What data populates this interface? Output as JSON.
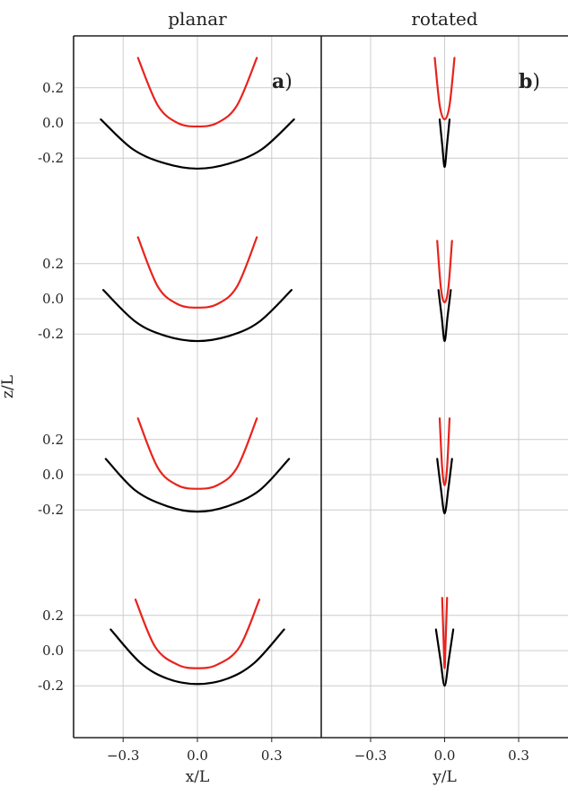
{
  "chart_data": {
    "type": "line",
    "ylabel": "z/L",
    "y_ticks": [
      "0.2",
      "0.0",
      "-0.2"
    ],
    "row_ytick_values": [
      0.2,
      0.0,
      -0.2
    ],
    "colors": {
      "red": "#e8231c",
      "black": "#000000"
    },
    "panels": [
      {
        "title": "planar",
        "tag": "a",
        "xlabel": "x/L",
        "x_ticks": [
          "−0.3",
          "0.0",
          "0.3"
        ],
        "x_tick_values": [
          -0.3,
          0.0,
          0.3
        ],
        "xlim": [
          -0.5,
          0.5
        ],
        "rows": [
          {
            "red": {
              "x": [
                -0.24,
                -0.16,
                -0.08,
                0.0,
                0.08,
                0.16,
                0.24
              ],
              "z": [
                0.37,
                0.1,
                0.0,
                -0.02,
                0.0,
                0.1,
                0.37
              ]
            },
            "black": {
              "x": [
                -0.39,
                -0.26,
                -0.13,
                0.0,
                0.13,
                0.26,
                0.39
              ],
              "z": [
                0.02,
                -0.15,
                -0.23,
                -0.26,
                -0.23,
                -0.15,
                0.02
              ]
            }
          },
          {
            "red": {
              "x": [
                -0.24,
                -0.16,
                -0.08,
                0.0,
                0.08,
                0.16,
                0.24
              ],
              "z": [
                0.35,
                0.07,
                -0.03,
                -0.05,
                -0.03,
                0.07,
                0.35
              ]
            },
            "black": {
              "x": [
                -0.38,
                -0.25,
                -0.13,
                0.0,
                0.13,
                0.25,
                0.38
              ],
              "z": [
                0.05,
                -0.13,
                -0.21,
                -0.24,
                -0.21,
                -0.13,
                0.05
              ]
            }
          },
          {
            "red": {
              "x": [
                -0.24,
                -0.16,
                -0.08,
                0.0,
                0.08,
                0.16,
                0.24
              ],
              "z": [
                0.32,
                0.04,
                -0.06,
                -0.08,
                -0.06,
                0.04,
                0.32
              ]
            },
            "black": {
              "x": [
                -0.37,
                -0.25,
                -0.12,
                0.0,
                0.12,
                0.25,
                0.37
              ],
              "z": [
                0.09,
                -0.09,
                -0.18,
                -0.21,
                -0.18,
                -0.09,
                0.09
              ]
            }
          },
          {
            "red": {
              "x": [
                -0.25,
                -0.17,
                -0.08,
                0.0,
                0.08,
                0.17,
                0.25
              ],
              "z": [
                0.29,
                0.02,
                -0.08,
                -0.1,
                -0.08,
                0.02,
                0.29
              ]
            },
            "black": {
              "x": [
                -0.35,
                -0.23,
                -0.12,
                0.0,
                0.12,
                0.23,
                0.35
              ],
              "z": [
                0.12,
                -0.07,
                -0.16,
                -0.19,
                -0.16,
                -0.07,
                0.12
              ]
            }
          }
        ]
      },
      {
        "title": "rotated",
        "tag": "b",
        "xlabel": "y/L",
        "x_ticks": [
          "−0.3",
          "0.0",
          "0.3"
        ],
        "x_tick_values": [
          -0.3,
          0.0,
          0.3
        ],
        "xlim": [
          -0.5,
          0.5
        ],
        "rows": [
          {
            "red": {
              "x": [
                -0.04,
                -0.02,
                0.0,
                0.02,
                0.04
              ],
              "z": [
                0.37,
                0.1,
                0.02,
                0.1,
                0.37
              ]
            },
            "black": {
              "x": [
                -0.02,
                -0.01,
                0.0,
                0.01,
                0.02
              ],
              "z": [
                0.02,
                -0.12,
                -0.25,
                -0.12,
                0.02
              ]
            }
          },
          {
            "red": {
              "x": [
                -0.03,
                -0.015,
                0.0,
                0.015,
                0.03
              ],
              "z": [
                0.33,
                0.06,
                -0.02,
                0.06,
                0.33
              ]
            },
            "black": {
              "x": [
                -0.025,
                -0.012,
                0.0,
                0.012,
                0.025
              ],
              "z": [
                0.05,
                -0.1,
                -0.24,
                -0.1,
                0.05
              ]
            }
          },
          {
            "red": {
              "x": [
                -0.02,
                -0.01,
                0.0,
                0.01,
                0.02
              ],
              "z": [
                0.32,
                0.04,
                -0.06,
                0.04,
                0.32
              ]
            },
            "black": {
              "x": [
                -0.03,
                -0.015,
                0.0,
                0.015,
                0.03
              ],
              "z": [
                0.09,
                -0.08,
                -0.22,
                -0.08,
                0.09
              ]
            }
          },
          {
            "red": {
              "x": [
                -0.01,
                -0.004,
                0.0,
                0.004,
                0.01
              ],
              "z": [
                0.3,
                0.05,
                -0.1,
                0.05,
                0.3
              ]
            },
            "black": {
              "x": [
                -0.035,
                -0.017,
                0.0,
                0.017,
                0.035
              ],
              "z": [
                0.12,
                -0.05,
                -0.2,
                -0.05,
                0.12
              ]
            }
          }
        ]
      }
    ]
  }
}
